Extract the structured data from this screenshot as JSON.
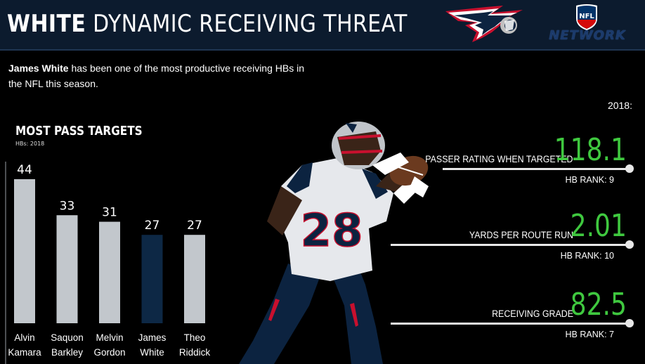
{
  "header": {
    "title_bold": "WHITE",
    "title_rest": "DYNAMIC RECEIVING THREAT",
    "network_text": "NETWORK",
    "nfl_text": "NFL"
  },
  "intro": {
    "name": "James White",
    "text": " has been one of the most productive receiving HBs in the NFL this season."
  },
  "chart_data": {
    "type": "bar",
    "title": "MOST PASS TARGETS",
    "subtitle": "HBs: 2018",
    "categories": [
      "Alvin Kamara",
      "Saquon Barkley",
      "Melvin Gordon",
      "James White",
      "Theo Riddick"
    ],
    "category_lines": [
      [
        "Alvin",
        "Kamara"
      ],
      [
        "Saquon",
        "Barkley"
      ],
      [
        "Melvin",
        "Gordon"
      ],
      [
        "James",
        "White"
      ],
      [
        "Theo",
        "Riddick"
      ]
    ],
    "values": [
      44,
      33,
      31,
      27,
      27
    ],
    "value_labels": [
      "44",
      "33",
      "31",
      "27",
      "27"
    ],
    "highlight_index": 3,
    "bar_color": "#c2c7cc",
    "highlight_color": "#0d2845",
    "ylim": [
      0,
      44
    ],
    "grid": false
  },
  "stats": {
    "year": "2018:",
    "items": [
      {
        "label": "PASSER RATING WHEN TARGETED",
        "value": "118.1",
        "rank": "HB  RANK: 9"
      },
      {
        "label": "YARDS PER ROUTE RUN",
        "value": "2.01",
        "rank": "HB RANK: 10"
      },
      {
        "label": "RECEIVING GRADE",
        "value": "82.5",
        "rank": "HB RANK: 7"
      }
    ],
    "value_color": "#3fc83f"
  },
  "player": {
    "jersey_number": "28"
  }
}
